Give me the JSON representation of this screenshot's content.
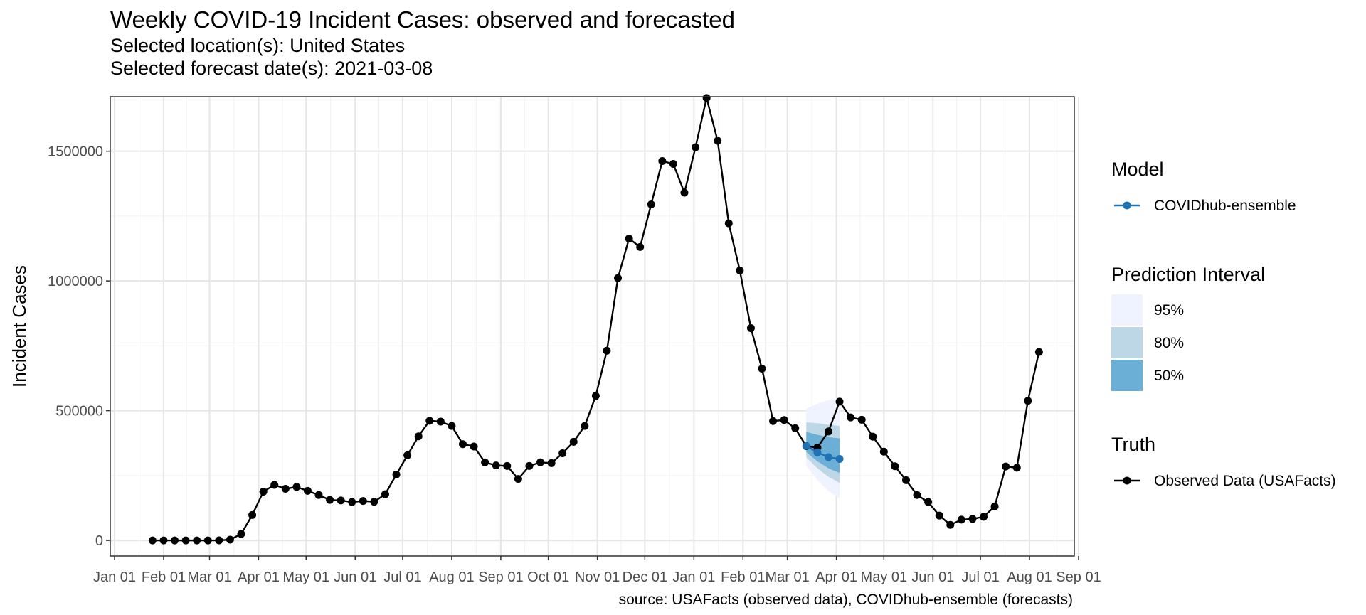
{
  "chart_data": {
    "type": "line",
    "title": "Weekly COVID-19 Incident Cases: observed and forecasted",
    "subtitles": [
      "Selected location(s): United States",
      "Selected forecast date(s): 2021-03-08"
    ],
    "ylabel": "Incident Cases",
    "xlabel": "",
    "caption": "source: USAFacts (observed data), COVIDhub-ensemble (forecasts)",
    "x_axis": {
      "type": "date",
      "range": [
        "2020-01-01",
        "2021-09-01"
      ],
      "ticks": [
        {
          "date": "2020-01-01",
          "label": "Jan 01"
        },
        {
          "date": "2020-02-01",
          "label": "Feb 01"
        },
        {
          "date": "2020-03-01",
          "label": "Mar 01"
        },
        {
          "date": "2020-04-01",
          "label": "Apr 01"
        },
        {
          "date": "2020-05-01",
          "label": "May 01"
        },
        {
          "date": "2020-06-01",
          "label": "Jun 01"
        },
        {
          "date": "2020-07-01",
          "label": "Jul 01"
        },
        {
          "date": "2020-08-01",
          "label": "Aug 01"
        },
        {
          "date": "2020-09-01",
          "label": "Sep 01"
        },
        {
          "date": "2020-10-01",
          "label": "Oct 01"
        },
        {
          "date": "2020-11-01",
          "label": "Nov 01"
        },
        {
          "date": "2020-12-01",
          "label": "Dec 01"
        },
        {
          "date": "2021-01-01",
          "label": "Jan 01"
        },
        {
          "date": "2021-02-01",
          "label": "Feb 01"
        },
        {
          "date": "2021-03-01",
          "label": "Mar 01"
        },
        {
          "date": "2021-04-01",
          "label": "Apr 01"
        },
        {
          "date": "2021-05-01",
          "label": "May 01"
        },
        {
          "date": "2021-06-01",
          "label": "Jun 01"
        },
        {
          "date": "2021-07-01",
          "label": "Jul 01"
        },
        {
          "date": "2021-08-01",
          "label": "Aug 01"
        },
        {
          "date": "2021-09-01",
          "label": "Sep 01"
        }
      ]
    },
    "y_axis": {
      "range": [
        -60000,
        1710000
      ],
      "ticks": [
        {
          "value": 0,
          "label": "0"
        },
        {
          "value": 500000,
          "label": "500000"
        },
        {
          "value": 1000000,
          "label": "1000000"
        },
        {
          "value": 1500000,
          "label": "1500000"
        }
      ],
      "minor_ticks": [
        250000,
        750000,
        1250000
      ]
    },
    "grid": true,
    "series": [
      {
        "name": "Observed Data (USAFacts)",
        "color": "#000000",
        "points": [
          {
            "date": "2020-01-25",
            "value": 2
          },
          {
            "date": "2020-02-01",
            "value": 3
          },
          {
            "date": "2020-02-08",
            "value": 2
          },
          {
            "date": "2020-02-15",
            "value": 5
          },
          {
            "date": "2020-02-22",
            "value": 10
          },
          {
            "date": "2020-02-29",
            "value": 60
          },
          {
            "date": "2020-03-07",
            "value": 400
          },
          {
            "date": "2020-03-14",
            "value": 3000
          },
          {
            "date": "2020-03-21",
            "value": 25000
          },
          {
            "date": "2020-03-28",
            "value": 98000
          },
          {
            "date": "2020-04-04",
            "value": 188000
          },
          {
            "date": "2020-04-11",
            "value": 214000
          },
          {
            "date": "2020-04-18",
            "value": 199000
          },
          {
            "date": "2020-04-25",
            "value": 206000
          },
          {
            "date": "2020-05-02",
            "value": 191000
          },
          {
            "date": "2020-05-09",
            "value": 175000
          },
          {
            "date": "2020-05-16",
            "value": 156000
          },
          {
            "date": "2020-05-23",
            "value": 154000
          },
          {
            "date": "2020-05-30",
            "value": 148000
          },
          {
            "date": "2020-06-06",
            "value": 152000
          },
          {
            "date": "2020-06-13",
            "value": 149000
          },
          {
            "date": "2020-06-20",
            "value": 178000
          },
          {
            "date": "2020-06-27",
            "value": 254000
          },
          {
            "date": "2020-07-04",
            "value": 328000
          },
          {
            "date": "2020-07-11",
            "value": 401000
          },
          {
            "date": "2020-07-18",
            "value": 461000
          },
          {
            "date": "2020-07-25",
            "value": 458000
          },
          {
            "date": "2020-08-01",
            "value": 441000
          },
          {
            "date": "2020-08-08",
            "value": 371000
          },
          {
            "date": "2020-08-15",
            "value": 362000
          },
          {
            "date": "2020-08-22",
            "value": 301000
          },
          {
            "date": "2020-08-29",
            "value": 289000
          },
          {
            "date": "2020-09-05",
            "value": 287000
          },
          {
            "date": "2020-09-12",
            "value": 237000
          },
          {
            "date": "2020-09-19",
            "value": 287000
          },
          {
            "date": "2020-09-26",
            "value": 301000
          },
          {
            "date": "2020-10-03",
            "value": 298000
          },
          {
            "date": "2020-10-10",
            "value": 336000
          },
          {
            "date": "2020-10-17",
            "value": 380000
          },
          {
            "date": "2020-10-24",
            "value": 441000
          },
          {
            "date": "2020-10-31",
            "value": 557000
          },
          {
            "date": "2020-11-07",
            "value": 731000
          },
          {
            "date": "2020-11-14",
            "value": 1011000
          },
          {
            "date": "2020-11-21",
            "value": 1163000
          },
          {
            "date": "2020-11-28",
            "value": 1131000
          },
          {
            "date": "2020-12-05",
            "value": 1295000
          },
          {
            "date": "2020-12-12",
            "value": 1462000
          },
          {
            "date": "2020-12-19",
            "value": 1451000
          },
          {
            "date": "2020-12-26",
            "value": 1340000
          },
          {
            "date": "2021-01-02",
            "value": 1515000
          },
          {
            "date": "2021-01-09",
            "value": 1705000
          },
          {
            "date": "2021-01-16",
            "value": 1540000
          },
          {
            "date": "2021-01-23",
            "value": 1222000
          },
          {
            "date": "2021-01-30",
            "value": 1040000
          },
          {
            "date": "2021-02-06",
            "value": 818000
          },
          {
            "date": "2021-02-13",
            "value": 662000
          },
          {
            "date": "2021-02-20",
            "value": 460000
          },
          {
            "date": "2021-02-27",
            "value": 464000
          },
          {
            "date": "2021-03-06",
            "value": 432000
          },
          {
            "date": "2021-03-13",
            "value": 363000
          },
          {
            "date": "2021-03-20",
            "value": 358000
          },
          {
            "date": "2021-03-27",
            "value": 420000
          },
          {
            "date": "2021-04-03",
            "value": 535000
          },
          {
            "date": "2021-04-10",
            "value": 474000
          },
          {
            "date": "2021-04-17",
            "value": 465000
          },
          {
            "date": "2021-04-24",
            "value": 400000
          },
          {
            "date": "2021-05-01",
            "value": 342000
          },
          {
            "date": "2021-05-08",
            "value": 286000
          },
          {
            "date": "2021-05-15",
            "value": 232000
          },
          {
            "date": "2021-05-22",
            "value": 175000
          },
          {
            "date": "2021-05-29",
            "value": 148000
          },
          {
            "date": "2021-06-05",
            "value": 96000
          },
          {
            "date": "2021-06-12",
            "value": 60000
          },
          {
            "date": "2021-06-19",
            "value": 80000
          },
          {
            "date": "2021-06-26",
            "value": 83000
          },
          {
            "date": "2021-07-03",
            "value": 91000
          },
          {
            "date": "2021-07-10",
            "value": 131000
          },
          {
            "date": "2021-07-17",
            "value": 285000
          },
          {
            "date": "2021-07-24",
            "value": 280000
          },
          {
            "date": "2021-07-31",
            "value": 538000
          },
          {
            "date": "2021-08-07",
            "value": 726000
          }
        ]
      },
      {
        "name": "COVIDhub-ensemble",
        "color": "#2171b5",
        "points": [
          {
            "date": "2021-03-13",
            "value": 364000
          },
          {
            "date": "2021-03-20",
            "value": 339000
          },
          {
            "date": "2021-03-27",
            "value": 321000
          },
          {
            "date": "2021-04-03",
            "value": 314000
          }
        ]
      }
    ],
    "prediction_intervals": [
      {
        "level": "95%",
        "color": "#eff3ff",
        "lower": [
          288000,
          233000,
          190000,
          163000
        ],
        "upper": [
          508000,
          527000,
          540000,
          548000
        ]
      },
      {
        "level": "80%",
        "color": "#bdd7e7",
        "lower": [
          320000,
          278000,
          245000,
          222000
        ],
        "upper": [
          455000,
          452000,
          446000,
          441000
        ]
      },
      {
        "level": "50%",
        "color": "#6baed6",
        "lower": [
          340000,
          305000,
          278000,
          260000
        ],
        "upper": [
          418000,
          407000,
          398000,
          393000
        ]
      }
    ],
    "legend": {
      "placement": "right",
      "model_title": "Model",
      "model_items": [
        {
          "label": "COVIDhub-ensemble",
          "color": "#2171b5"
        }
      ],
      "interval_title": "Prediction Interval",
      "interval_items": [
        {
          "label": "95%",
          "color": "#eff3ff"
        },
        {
          "label": "80%",
          "color": "#bdd7e7"
        },
        {
          "label": "50%",
          "color": "#6baed6"
        }
      ],
      "truth_title": "Truth",
      "truth_items": [
        {
          "label": "Observed Data (USAFacts)",
          "color": "#000000"
        }
      ]
    }
  }
}
